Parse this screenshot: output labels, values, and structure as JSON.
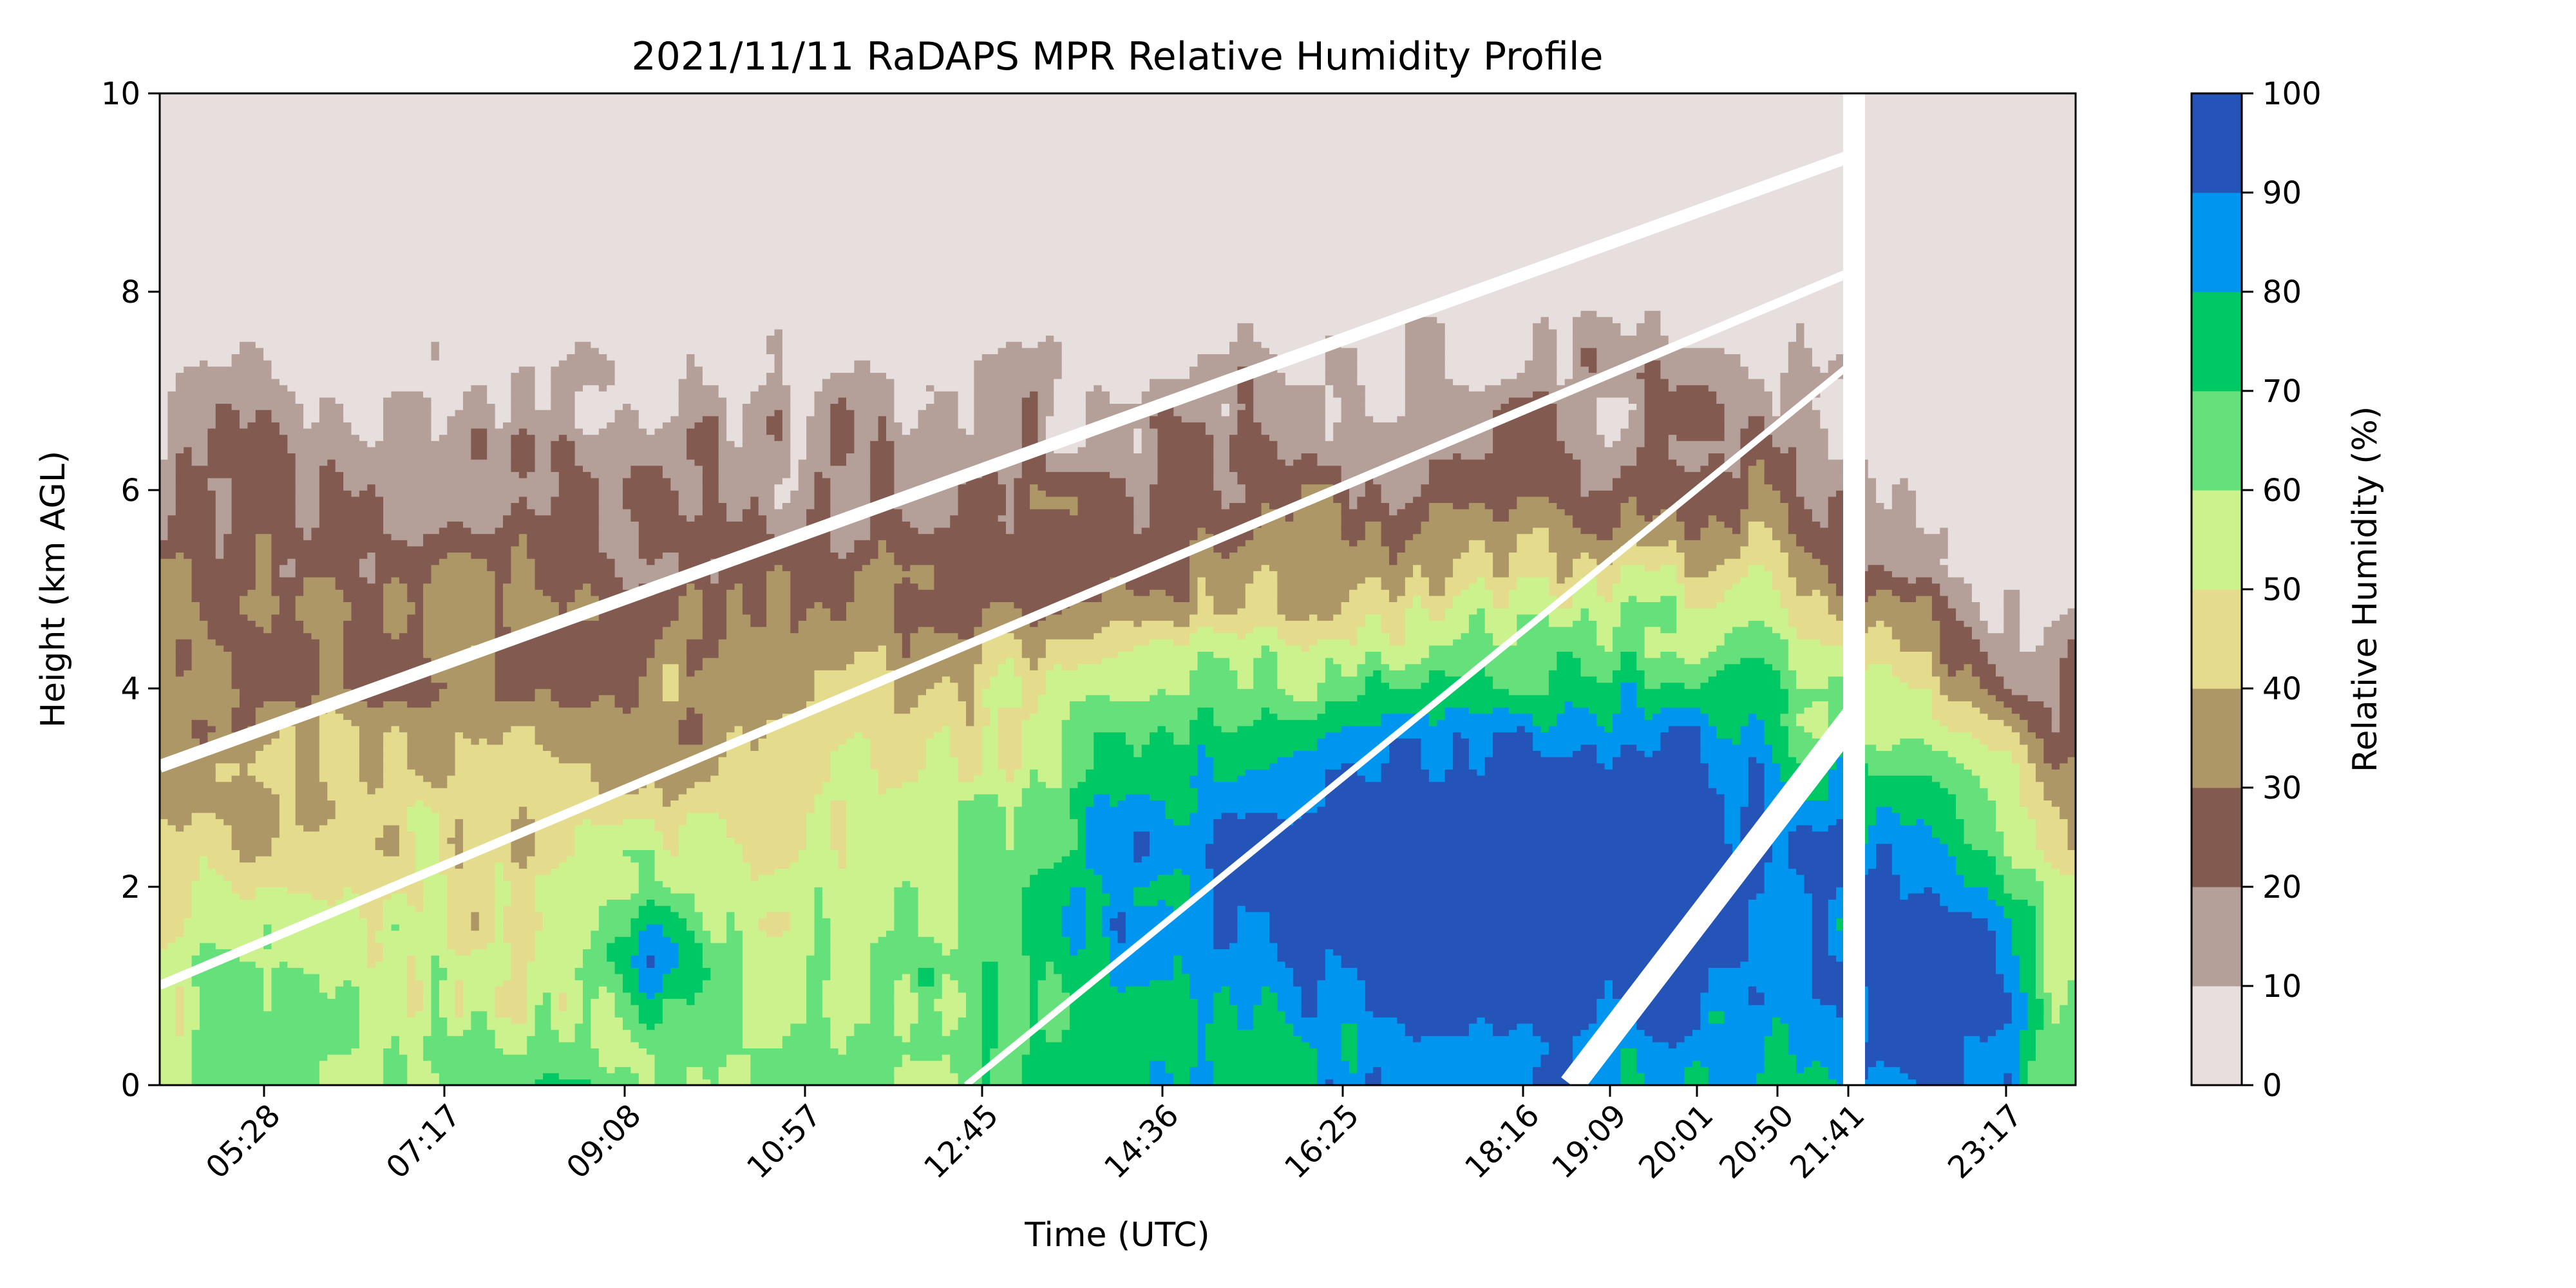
{
  "chart_data": {
    "type": "heatmap",
    "subtype": "filled-contour",
    "title": "2021/11/11 RaDAPS MPR Relative Humidity Profile",
    "xlabel": "Time (UTC)",
    "ylabel": "Height (km AGL)",
    "ylim": [
      0,
      10
    ],
    "yticks": [
      "0",
      "2",
      "4",
      "6",
      "8",
      "10"
    ],
    "xticks": [
      "05:28",
      "07:17",
      "09:08",
      "10:57",
      "12:45",
      "14:36",
      "16:25",
      "18:16",
      "19:09",
      "20:01",
      "20:50",
      "21:41",
      "23:17"
    ],
    "colorbar": {
      "label": "Relative Humidity (%)",
      "levels": [
        0,
        10,
        20,
        30,
        40,
        50,
        60,
        70,
        80,
        90,
        100
      ],
      "tick_labels": [
        "0",
        "10",
        "20",
        "30",
        "40",
        "50",
        "60",
        "70",
        "80",
        "90",
        "100"
      ],
      "colors": [
        "#e7dfdd",
        "#b49f99",
        "#825a50",
        "#ae9766",
        "#e4dc8c",
        "#ccf28e",
        "#66e07b",
        "#00c864",
        "#0096f0",
        "#2454b8"
      ]
    },
    "grid": false,
    "legend": "colorbar-right"
  }
}
